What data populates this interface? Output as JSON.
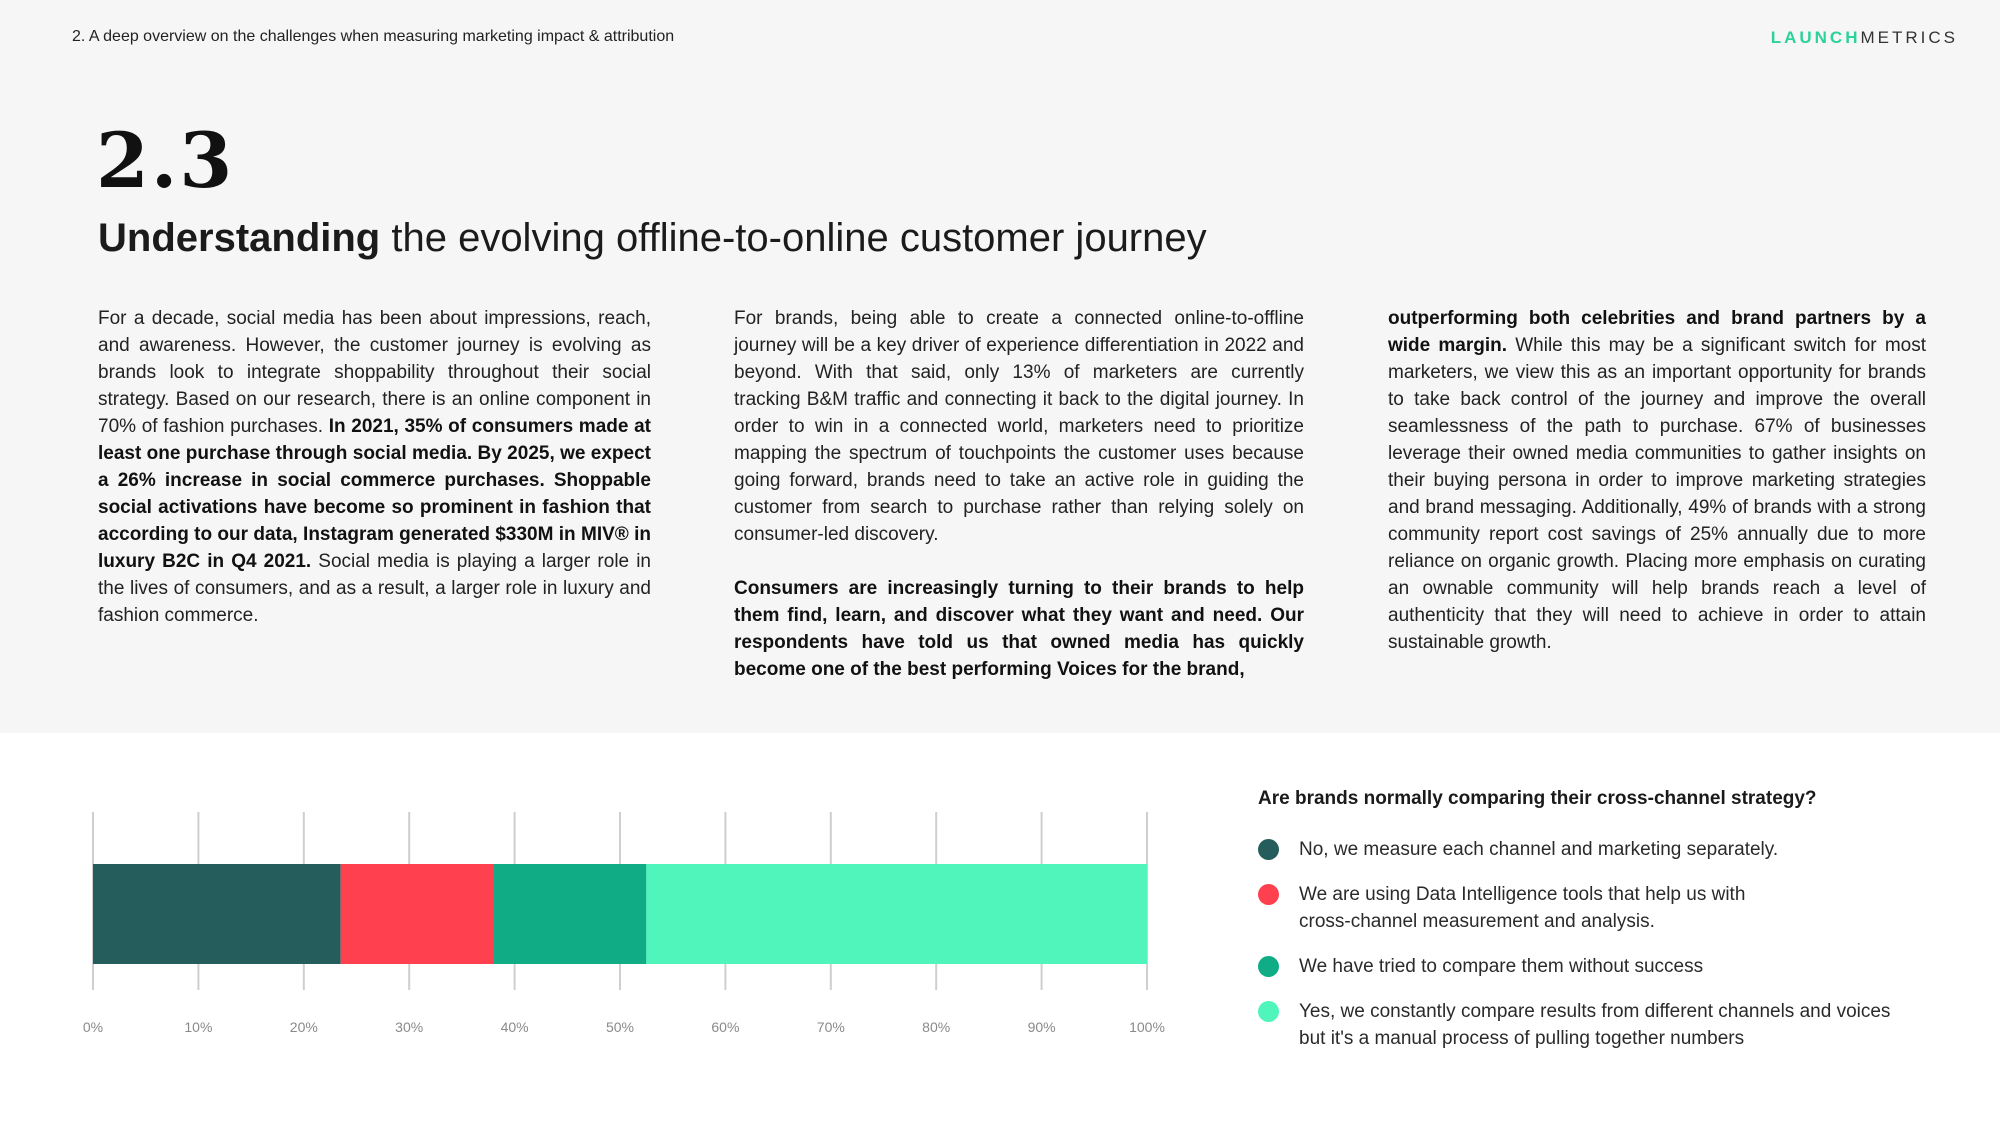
{
  "header": {
    "section_path": "2. A deep overview on the challenges when measuring marketing impact & attribution",
    "brand_part1": "LAUNCH",
    "brand_part2": "METRICS"
  },
  "section": {
    "number": "2.3",
    "title_bold": "Understanding",
    "title_rest": " the evolving offline-to-online customer journey"
  },
  "columns": [
    [
      [
        {
          "t": "For a decade, social media has been about impressions, reach, and awareness. However, the customer journey is evolving as brands look to integrate shoppability throughout their social strategy. Based on our research, there is an online component in 70% of fashion purchases. ",
          "b": false
        },
        {
          "t": "In 2021, 35% of consumers made at least one purchase through social media. By 2025, we expect a 26% increase in social commerce purchases. Shoppable social activations have become so prominent in fashion that according to our data, Instagram generated $330M in MIV® in luxury B2C in Q4 2021.",
          "b": true
        },
        {
          "t": " Social media is playing a larger role in the lives of consumers, and as a result, a larger role in luxury and fashion commerce.",
          "b": false
        }
      ]
    ],
    [
      [
        {
          "t": "For brands, being able to create a connected online-to-offline journey will be a key driver of experience differentiation in 2022 and beyond. With that said, only 13% of marketers are currently tracking B&M traffic and connecting it back to the digital journey. In order to win in a connected world, marketers need to prioritize mapping the spectrum of touchpoints the customer uses because going forward, brands need to take an active role in guiding the customer from search to purchase rather than relying solely on consumer-led discovery.",
          "b": false
        }
      ],
      [
        {
          "t": "Consumers are increasingly turning to their brands to help them find, learn, and discover what they want and need. Our respondents have told us that owned media has quickly become one of the best performing Voices for the brand,",
          "b": true
        }
      ]
    ],
    [
      [
        {
          "t": "outperforming both celebrities and brand partners by a wide margin.",
          "b": true
        },
        {
          "t": " While this may be a significant switch for most marketers, we view this as an important opportunity for brands to take back control of the journey and improve the overall seamlessness of the path to purchase. 67% of businesses leverage their owned media communities to gather insights on their buying persona in order to improve marketing strategies and brand messaging. Additionally, 49% of brands with a strong community report cost savings of 25% annually due to more reliance on organic growth. Placing more emphasis on curating an ownable community will help brands reach a level of authenticity that they will need to achieve in order to attain sustainable growth.",
          "b": false
        }
      ]
    ]
  ],
  "chart_data": {
    "type": "bar",
    "orientation": "horizontal",
    "stacked": true,
    "title": "Are brands normally comparing their cross-channel strategy?",
    "x_ticks": [
      "0%",
      "10%",
      "20%",
      "30%",
      "40%",
      "50%",
      "60%",
      "70%",
      "80%",
      "90%",
      "100%"
    ],
    "xlim": [
      0,
      100
    ],
    "grid": true,
    "legend_position": "right",
    "series": [
      {
        "name": "No, we measure each channel and marketing separately.",
        "value": 23.5,
        "color": "#255c5c"
      },
      {
        "name": "We are using Data Intelligence tools that help us with cross-channel measurement and analysis.",
        "value": 14.5,
        "color": "#ff404e"
      },
      {
        "name": "We have tried to compare them without success",
        "value": 14.5,
        "color": "#0fac86"
      },
      {
        "name": "Yes, we constantly compare results from different channels and voices but it's a manual process of pulling together numbers",
        "value": 47.5,
        "color": "#4ff5bb"
      }
    ]
  }
}
